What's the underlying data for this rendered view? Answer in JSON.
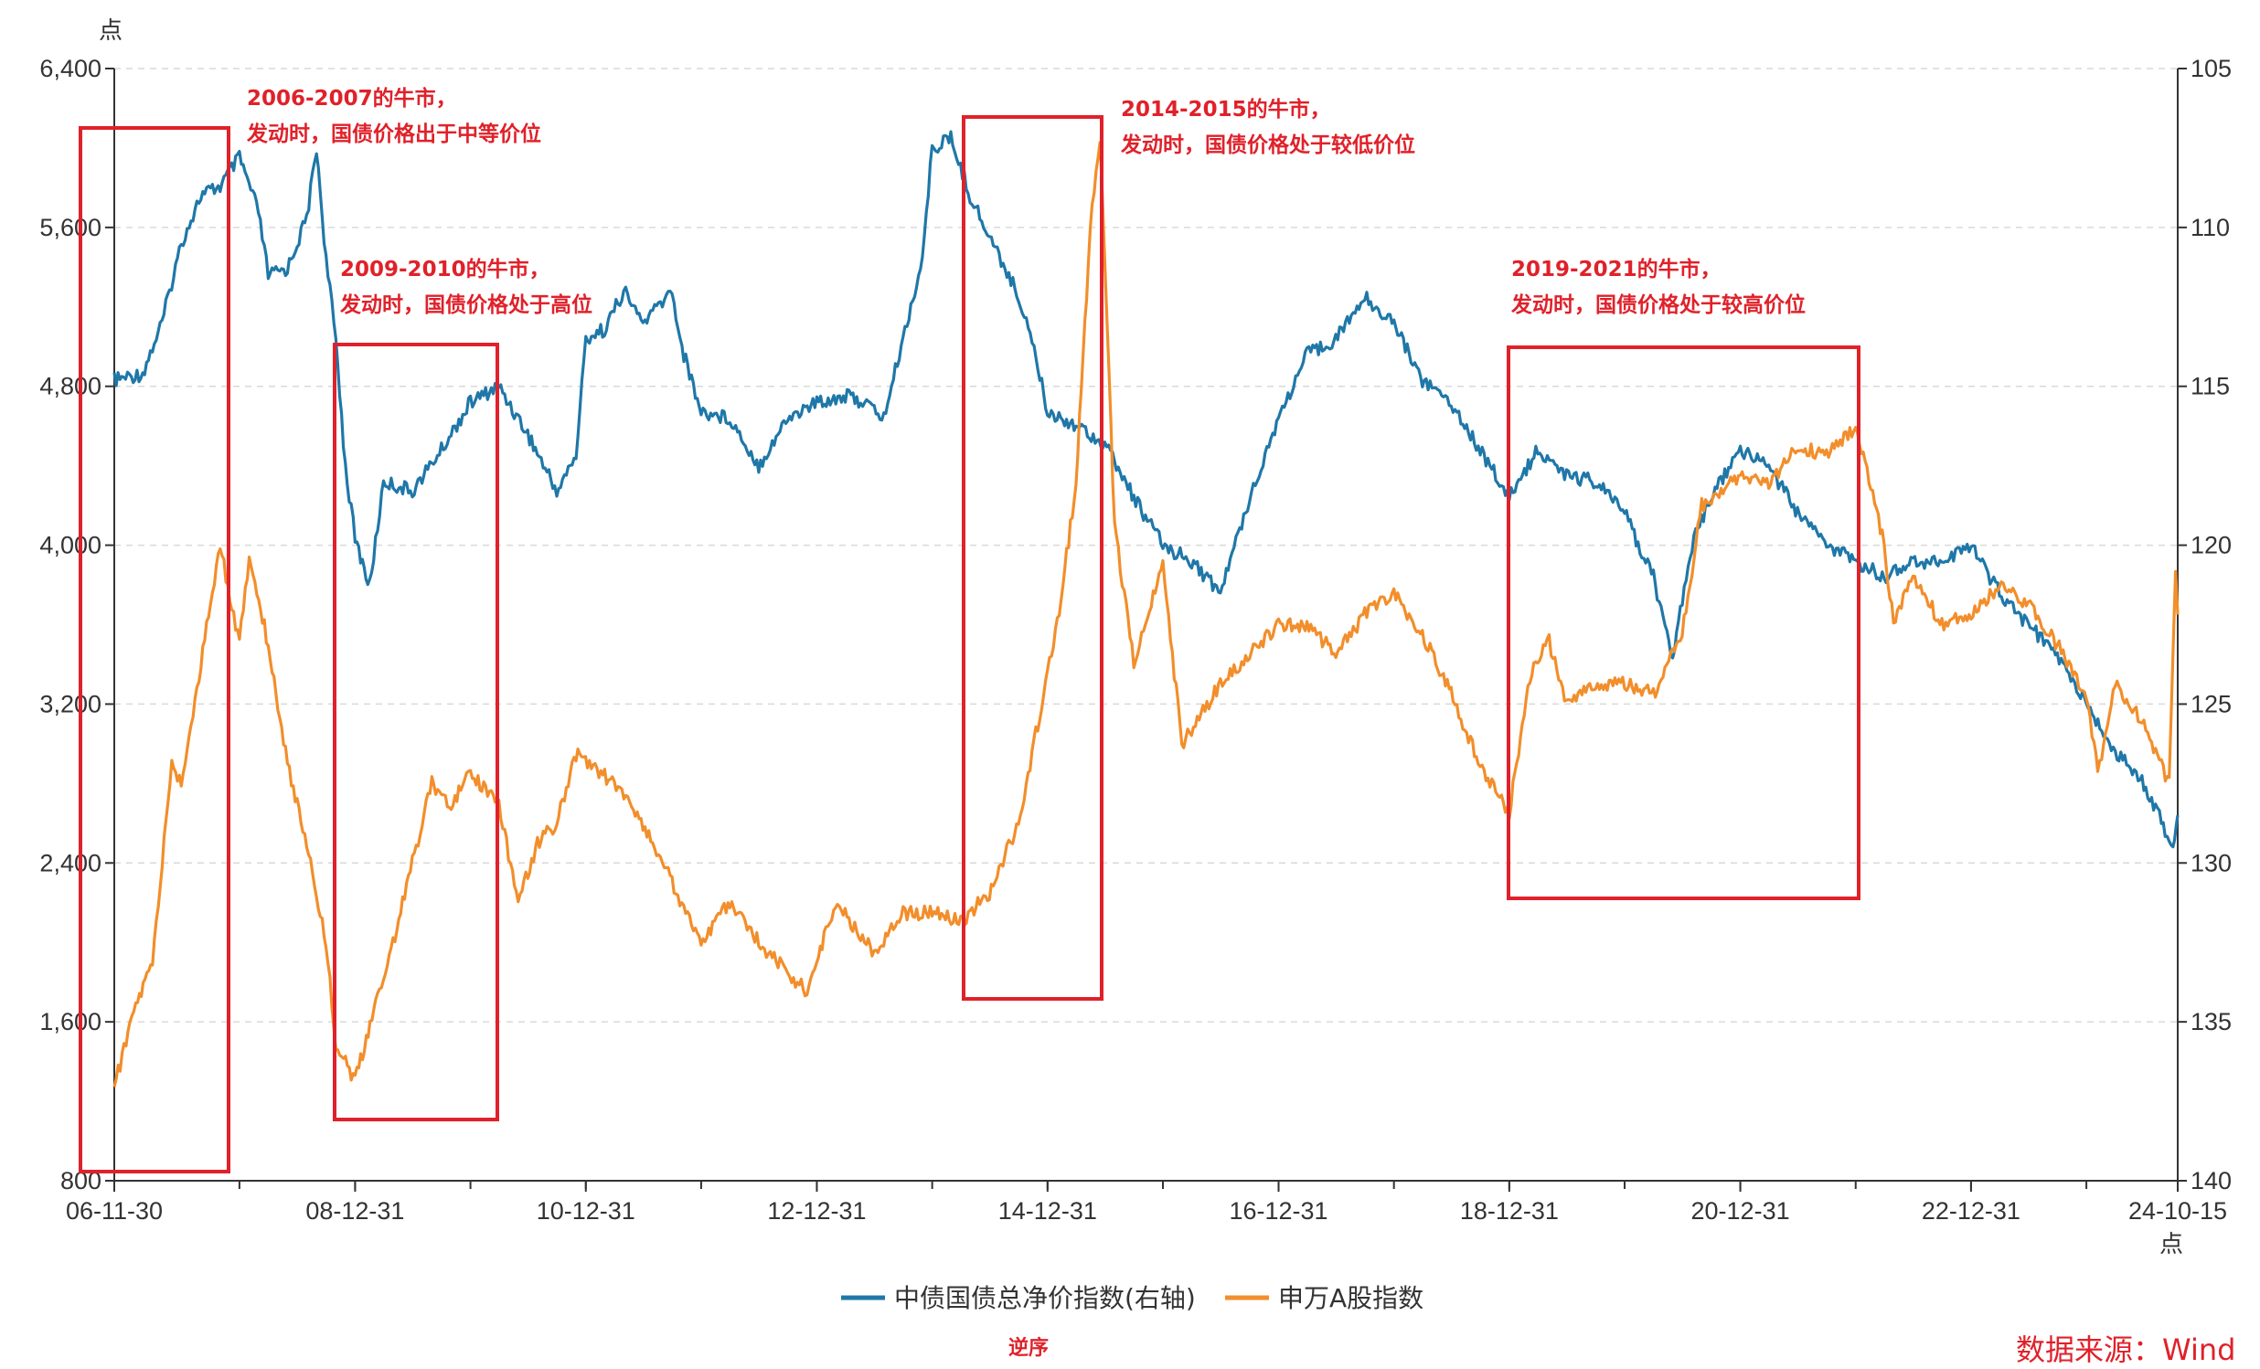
{
  "chart_data": {
    "type": "line",
    "left_axis": {
      "unit": "点",
      "range": [
        800,
        6400
      ],
      "ticks": [
        800,
        1600,
        2400,
        3200,
        4000,
        4800,
        5600,
        6400
      ],
      "tick_labels": [
        "800",
        "1,600",
        "2,400",
        "3,200",
        "4,000",
        "4,800",
        "5,600",
        "6,400"
      ],
      "grid": true
    },
    "right_axis": {
      "range": [
        105,
        140
      ],
      "reversed": true,
      "ticks": [
        105,
        110,
        115,
        120,
        125,
        130,
        135,
        140
      ],
      "tick_labels": [
        "105",
        "110",
        "115",
        "120",
        "125",
        "130",
        "135",
        "140"
      ]
    },
    "x_axis": {
      "unit": "点",
      "range": [
        "2006-11-30",
        "2024-10-15"
      ],
      "tick_labels": [
        "06-11-30",
        "08-12-31",
        "10-12-31",
        "12-12-31",
        "14-12-31",
        "16-12-31",
        "18-12-31",
        "20-12-31",
        "22-12-31",
        "24-10-15"
      ],
      "tick_dates": [
        "2006-11-30",
        "2008-12-31",
        "2010-12-31",
        "2012-12-31",
        "2014-12-31",
        "2016-12-31",
        "2018-12-31",
        "2020-12-31",
        "2022-12-31",
        "2024-10-15"
      ]
    },
    "series": [
      {
        "name": "中债国债总净价指数(右轴)",
        "axis": "right",
        "color": "#1f77a8",
        "points": [
          [
            "2006-11-30",
            114.8
          ],
          [
            "2007-02-28",
            114.6
          ],
          [
            "2007-04-30",
            113.0
          ],
          [
            "2007-06-30",
            110.5
          ],
          [
            "2007-08-31",
            109.0
          ],
          [
            "2007-10-31",
            108.7
          ],
          [
            "2007-12-31",
            107.8
          ],
          [
            "2008-02-29",
            109.5
          ],
          [
            "2008-03-31",
            111.5
          ],
          [
            "2008-05-31",
            111.3
          ],
          [
            "2008-07-31",
            109.7
          ],
          [
            "2008-08-31",
            107.5
          ],
          [
            "2008-09-30",
            111.0
          ],
          [
            "2008-10-31",
            113.5
          ],
          [
            "2008-11-30",
            117.5
          ],
          [
            "2008-12-31",
            119.8
          ],
          [
            "2009-02-15",
            121.3
          ],
          [
            "2009-03-31",
            118.0
          ],
          [
            "2009-06-30",
            118.3
          ],
          [
            "2009-09-30",
            117.0
          ],
          [
            "2009-12-31",
            115.5
          ],
          [
            "2010-03-31",
            115.0
          ],
          [
            "2010-06-30",
            116.5
          ],
          [
            "2010-09-30",
            118.3
          ],
          [
            "2010-11-30",
            117.2
          ],
          [
            "2010-12-31",
            113.5
          ],
          [
            "2011-02-28",
            113.2
          ],
          [
            "2011-04-30",
            112.0
          ],
          [
            "2011-06-30",
            113.0
          ],
          [
            "2011-09-30",
            112.0
          ],
          [
            "2011-10-31",
            113.8
          ],
          [
            "2011-12-31",
            115.8
          ],
          [
            "2012-03-31",
            116.0
          ],
          [
            "2012-06-30",
            117.5
          ],
          [
            "2012-09-30",
            116.0
          ],
          [
            "2012-12-31",
            115.5
          ],
          [
            "2013-03-31",
            115.3
          ],
          [
            "2013-05-31",
            115.5
          ],
          [
            "2013-07-31",
            116.0
          ],
          [
            "2013-09-30",
            113.5
          ],
          [
            "2013-11-30",
            111.0
          ],
          [
            "2013-12-31",
            107.5
          ],
          [
            "2014-02-28",
            107.2
          ],
          [
            "2014-04-30",
            109.0
          ],
          [
            "2014-06-30",
            110.3
          ],
          [
            "2014-08-31",
            111.5
          ],
          [
            "2014-10-31",
            113.0
          ],
          [
            "2014-12-31",
            115.8
          ],
          [
            "2015-03-31",
            116.2
          ],
          [
            "2015-06-30",
            116.8
          ],
          [
            "2015-09-30",
            118.5
          ],
          [
            "2015-12-31",
            120.0
          ],
          [
            "2016-03-31",
            120.5
          ],
          [
            "2016-06-30",
            121.5
          ],
          [
            "2016-09-30",
            118.5
          ],
          [
            "2016-12-31",
            116.0
          ],
          [
            "2017-03-31",
            114.0
          ],
          [
            "2017-06-30",
            113.5
          ],
          [
            "2017-09-30",
            112.2
          ],
          [
            "2017-12-31",
            113.0
          ],
          [
            "2018-03-31",
            114.8
          ],
          [
            "2018-06-30",
            115.5
          ],
          [
            "2018-09-30",
            117.0
          ],
          [
            "2018-12-31",
            118.5
          ],
          [
            "2019-03-31",
            117.0
          ],
          [
            "2019-06-30",
            117.8
          ],
          [
            "2019-09-30",
            118.0
          ],
          [
            "2019-12-31",
            119.0
          ],
          [
            "2020-03-31",
            121.0
          ],
          [
            "2020-05-31",
            123.5
          ],
          [
            "2020-07-31",
            120.0
          ],
          [
            "2020-09-30",
            118.5
          ],
          [
            "2020-12-31",
            117.0
          ],
          [
            "2021-03-31",
            117.5
          ],
          [
            "2021-06-30",
            119.0
          ],
          [
            "2021-09-30",
            120.0
          ],
          [
            "2021-12-31",
            120.5
          ],
          [
            "2022-03-31",
            121.0
          ],
          [
            "2022-06-30",
            120.5
          ],
          [
            "2022-09-30",
            120.5
          ],
          [
            "2022-12-31",
            120.0
          ],
          [
            "2023-03-31",
            121.5
          ],
          [
            "2023-06-30",
            122.5
          ],
          [
            "2023-09-30",
            123.5
          ],
          [
            "2023-12-31",
            125.0
          ],
          [
            "2024-03-31",
            126.5
          ],
          [
            "2024-06-30",
            127.5
          ],
          [
            "2024-09-30",
            129.5
          ],
          [
            "2024-10-15",
            128.5
          ]
        ]
      },
      {
        "name": "申万A股指数",
        "axis": "left",
        "color": "#f28e2b",
        "points": [
          [
            "2006-11-30",
            1270
          ],
          [
            "2007-01-31",
            1650
          ],
          [
            "2007-03-31",
            1900
          ],
          [
            "2007-05-31",
            2900
          ],
          [
            "2007-06-30",
            2800
          ],
          [
            "2007-08-31",
            3400
          ],
          [
            "2007-10-31",
            4000
          ],
          [
            "2007-12-31",
            3500
          ],
          [
            "2008-01-31",
            3950
          ],
          [
            "2008-03-31",
            3500
          ],
          [
            "2008-05-31",
            2900
          ],
          [
            "2008-07-31",
            2500
          ],
          [
            "2008-09-30",
            2000
          ],
          [
            "2008-10-31",
            1500
          ],
          [
            "2008-12-31",
            1300
          ],
          [
            "2009-02-28",
            1650
          ],
          [
            "2009-04-30",
            2000
          ],
          [
            "2009-06-30",
            2400
          ],
          [
            "2009-08-31",
            2800
          ],
          [
            "2009-10-31",
            2700
          ],
          [
            "2009-12-31",
            2850
          ],
          [
            "2010-03-31",
            2700
          ],
          [
            "2010-05-31",
            2200
          ],
          [
            "2010-07-31",
            2500
          ],
          [
            "2010-09-30",
            2600
          ],
          [
            "2010-11-30",
            2950
          ],
          [
            "2011-03-31",
            2800
          ],
          [
            "2011-06-30",
            2600
          ],
          [
            "2011-09-30",
            2300
          ],
          [
            "2011-12-31",
            2000
          ],
          [
            "2012-03-31",
            2200
          ],
          [
            "2012-06-30",
            2000
          ],
          [
            "2012-09-30",
            1850
          ],
          [
            "2012-11-30",
            1750
          ],
          [
            "2013-02-28",
            2200
          ],
          [
            "2013-06-30",
            1950
          ],
          [
            "2013-09-30",
            2150
          ],
          [
            "2013-12-31",
            2150
          ],
          [
            "2014-03-31",
            2100
          ],
          [
            "2014-06-30",
            2250
          ],
          [
            "2014-09-30",
            2600
          ],
          [
            "2014-11-30",
            3100
          ],
          [
            "2015-01-31",
            3600
          ],
          [
            "2015-03-31",
            4300
          ],
          [
            "2015-05-15",
            5600
          ],
          [
            "2015-06-15",
            6050
          ],
          [
            "2015-07-31",
            4100
          ],
          [
            "2015-09-30",
            3400
          ],
          [
            "2015-12-31",
            3900
          ],
          [
            "2016-02-29",
            3000
          ],
          [
            "2016-06-30",
            3300
          ],
          [
            "2016-09-30",
            3450
          ],
          [
            "2016-12-31",
            3600
          ],
          [
            "2017-03-31",
            3600
          ],
          [
            "2017-06-30",
            3450
          ],
          [
            "2017-09-30",
            3650
          ],
          [
            "2017-12-31",
            3750
          ],
          [
            "2018-03-31",
            3550
          ],
          [
            "2018-06-30",
            3250
          ],
          [
            "2018-09-30",
            2900
          ],
          [
            "2018-12-31",
            2650
          ],
          [
            "2019-02-28",
            3300
          ],
          [
            "2019-04-30",
            3550
          ],
          [
            "2019-06-30",
            3200
          ],
          [
            "2019-09-30",
            3300
          ],
          [
            "2019-12-31",
            3300
          ],
          [
            "2020-03-31",
            3250
          ],
          [
            "2020-06-30",
            3550
          ],
          [
            "2020-08-31",
            4200
          ],
          [
            "2020-12-31",
            4350
          ],
          [
            "2021-03-31",
            4300
          ],
          [
            "2021-06-30",
            4500
          ],
          [
            "2021-09-30",
            4450
          ],
          [
            "2021-12-31",
            4600
          ],
          [
            "2022-03-31",
            4000
          ],
          [
            "2022-04-30",
            3600
          ],
          [
            "2022-06-30",
            3850
          ],
          [
            "2022-09-30",
            3600
          ],
          [
            "2022-12-31",
            3650
          ],
          [
            "2023-03-31",
            3800
          ],
          [
            "2023-06-30",
            3700
          ],
          [
            "2023-09-30",
            3500
          ],
          [
            "2023-12-31",
            3250
          ],
          [
            "2024-02-05",
            2850
          ],
          [
            "2024-03-31",
            3300
          ],
          [
            "2024-06-30",
            3100
          ],
          [
            "2024-09-18",
            2800
          ],
          [
            "2024-10-08",
            3900
          ],
          [
            "2024-10-15",
            3650
          ]
        ]
      }
    ],
    "annotations": [
      {
        "lines": [
          "2006-2007的牛市，",
          "发动时，国债价格出于中等价位"
        ],
        "box": {
          "from": "2006-11-30",
          "to": "2007-12-31"
        }
      },
      {
        "lines": [
          "2009-2010的牛市，",
          "发动时，国债价格处于高位"
        ],
        "box": {
          "from": "2008-11-01",
          "to": "2010-02-28"
        }
      },
      {
        "lines": [
          "2014-2015的牛市，",
          "发动时，国债价格处于较低价位"
        ],
        "box": {
          "from": "2013-11-01",
          "to": "2015-01-31"
        }
      },
      {
        "lines": [
          "2019-2021的牛市，",
          "发动时，国债价格处于较高价位"
        ],
        "box": {
          "from": "2018-12-31",
          "to": "2021-12-31"
        }
      }
    ],
    "legend_position": "bottom-center",
    "right_axis_note": "逆序",
    "source": "数据来源：Wind"
  }
}
